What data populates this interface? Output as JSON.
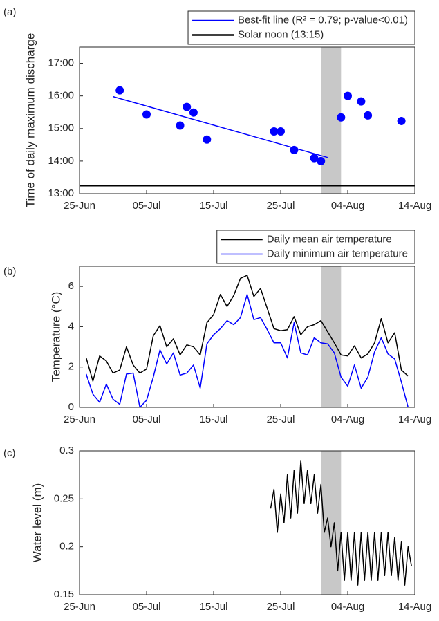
{
  "chart_data": [
    {
      "type": "scatter",
      "panel_label": "(a)",
      "ylabel": "Time of daily maximum discharge",
      "xlim": [
        0,
        50
      ],
      "xticks": [
        {
          "value": 0,
          "label": "25-Jun"
        },
        {
          "value": 10,
          "label": "05-Jul"
        },
        {
          "value": 20,
          "label": "15-Jul"
        },
        {
          "value": 30,
          "label": "25-Jul"
        },
        {
          "value": 40,
          "label": "04-Aug"
        },
        {
          "value": 50,
          "label": "14-Aug"
        }
      ],
      "ylim": [
        13,
        17.5
      ],
      "yticks": [
        {
          "value": 13,
          "label": "13:00"
        },
        {
          "value": 14,
          "label": "14:00"
        },
        {
          "value": 15,
          "label": "15:00"
        },
        {
          "value": 16,
          "label": "16:00"
        },
        {
          "value": 17,
          "label": "17:00"
        }
      ],
      "shade": [
        36,
        39
      ],
      "legend": "above right",
      "series": [
        {
          "style": "markers",
          "color": "#0000ff",
          "x": [
            6,
            10,
            15,
            16,
            17,
            19,
            29,
            30,
            32,
            35,
            36,
            39,
            40,
            42,
            43,
            48
          ],
          "values": [
            16.17,
            15.43,
            15.09,
            15.66,
            15.49,
            14.66,
            14.91,
            14.91,
            14.34,
            14.09,
            14.0,
            15.34,
            16.0,
            15.83,
            15.4,
            15.23
          ]
        },
        {
          "style": "line",
          "name": "Best-fit line (R² = 0.79; p-value<0.01)",
          "color": "#0000ff",
          "width": 1.5,
          "x": [
            5,
            37
          ],
          "values": [
            15.98,
            14.11
          ]
        },
        {
          "style": "line",
          "name": "Solar noon (13:15)",
          "color": "#000000",
          "width": 2.5,
          "x": [
            0,
            50
          ],
          "values": [
            13.25,
            13.25
          ]
        }
      ]
    },
    {
      "type": "line",
      "panel_label": "(b)",
      "ylabel": "Temperature (°C)",
      "xlim": [
        0,
        50
      ],
      "xticks": [
        {
          "value": 0,
          "label": "25-Jun"
        },
        {
          "value": 10,
          "label": "05-Jul"
        },
        {
          "value": 20,
          "label": "15-Jul"
        },
        {
          "value": 30,
          "label": "25-Jul"
        },
        {
          "value": 40,
          "label": "04-Aug"
        },
        {
          "value": 50,
          "label": "14-Aug"
        }
      ],
      "ylim": [
        0,
        7
      ],
      "yticks": [
        0,
        2,
        4,
        6
      ],
      "shade": [
        36,
        39
      ],
      "legend": "above right",
      "x": [
        1,
        2,
        3,
        4,
        5,
        6,
        7,
        8,
        9,
        10,
        11,
        12,
        13,
        14,
        15,
        16,
        17,
        18,
        19,
        20,
        21,
        22,
        23,
        24,
        25,
        26,
        27,
        28,
        29,
        30,
        31,
        32,
        33,
        34,
        35,
        36,
        37,
        38,
        39,
        40,
        41,
        42,
        43,
        44,
        45,
        46,
        47,
        48,
        49
      ],
      "series": [
        {
          "name": "Daily mean air temperature",
          "color": "#000000",
          "width": 1.5,
          "values": [
            2.45,
            1.3,
            2.55,
            2.3,
            1.7,
            1.85,
            3.0,
            2.1,
            1.7,
            1.9,
            3.55,
            4.05,
            3.0,
            3.4,
            2.6,
            3.1,
            3.0,
            2.6,
            4.2,
            4.6,
            5.6,
            5.0,
            5.55,
            6.4,
            6.55,
            5.5,
            5.9,
            4.9,
            3.9,
            3.8,
            3.85,
            4.5,
            3.6,
            4.0,
            4.1,
            4.3,
            3.75,
            3.2,
            2.6,
            2.55,
            3.05,
            2.45,
            2.65,
            3.2,
            4.4,
            3.2,
            3.7,
            1.85,
            1.55
          ]
        },
        {
          "name": "Daily minimum air temperature",
          "color": "#0000ff",
          "width": 1.5,
          "values": [
            1.65,
            0.65,
            0.25,
            1.15,
            0.4,
            0.15,
            1.65,
            1.7,
            0,
            0.35,
            1.5,
            2.85,
            2.15,
            2.7,
            1.6,
            1.7,
            2.1,
            0.95,
            3.15,
            3.6,
            3.9,
            4.3,
            4.1,
            4.45,
            5.6,
            4.35,
            4.45,
            3.85,
            3.2,
            3.2,
            2.45,
            4.2,
            2.7,
            2.6,
            3.45,
            3.2,
            3.15,
            2.7,
            1.5,
            1.05,
            2.1,
            0.95,
            1.5,
            2.75,
            3.45,
            2.65,
            2.4,
            1.25,
            0
          ]
        }
      ]
    },
    {
      "type": "line",
      "panel_label": "(c)",
      "ylabel": "Water level (m)",
      "xlim": [
        0,
        50
      ],
      "xticks": [
        {
          "value": 0,
          "label": "25-Jun"
        },
        {
          "value": 10,
          "label": "05-Jul"
        },
        {
          "value": 20,
          "label": "15-Jul"
        },
        {
          "value": 30,
          "label": "25-Jul"
        },
        {
          "value": 40,
          "label": "04-Aug"
        },
        {
          "value": 50,
          "label": "14-Aug"
        }
      ],
      "ylim": [
        0.15,
        0.3
      ],
      "yticks": [
        0.15,
        0.2,
        0.25,
        0.3
      ],
      "shade": [
        36,
        39
      ],
      "x": [
        28.5,
        29,
        29.5,
        30,
        30.5,
        31,
        31.5,
        32,
        32.5,
        33,
        33.5,
        34,
        34.5,
        35,
        35.5,
        36,
        36.5,
        37,
        37.5,
        38,
        38.5,
        39,
        39.5,
        40,
        40.5,
        41,
        41.5,
        42,
        42.5,
        43,
        43.5,
        44,
        44.5,
        45,
        45.5,
        46,
        46.5,
        47,
        47.5,
        48,
        48.5,
        49,
        49.5
      ],
      "series": [
        {
          "color": "#000000",
          "width": 1.5,
          "values": [
            0.24,
            0.26,
            0.215,
            0.255,
            0.225,
            0.275,
            0.23,
            0.28,
            0.235,
            0.29,
            0.245,
            0.28,
            0.245,
            0.275,
            0.235,
            0.265,
            0.215,
            0.23,
            0.2,
            0.225,
            0.175,
            0.215,
            0.165,
            0.215,
            0.165,
            0.215,
            0.16,
            0.215,
            0.165,
            0.215,
            0.165,
            0.215,
            0.165,
            0.215,
            0.17,
            0.215,
            0.17,
            0.21,
            0.165,
            0.205,
            0.16,
            0.2,
            0.18
          ]
        }
      ]
    }
  ]
}
